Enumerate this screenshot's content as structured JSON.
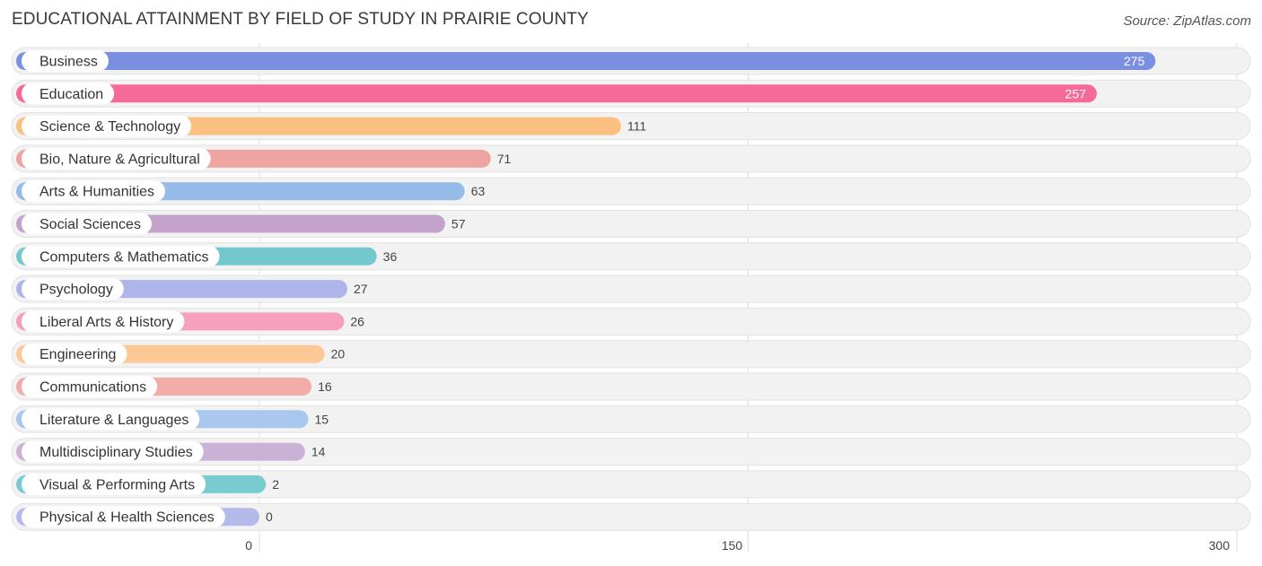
{
  "header": {
    "title": "EDUCATIONAL ATTAINMENT BY FIELD OF STUDY IN PRAIRIE COUNTY",
    "source": "Source: ZipAtlas.com"
  },
  "chart_data": {
    "type": "bar",
    "orientation": "horizontal",
    "title": "EDUCATIONAL ATTAINMENT BY FIELD OF STUDY IN PRAIRIE COUNTY",
    "xlabel": "",
    "ylabel": "",
    "xlim": [
      0,
      300
    ],
    "ticks": [
      0,
      150,
      300
    ],
    "grid": true,
    "categories": [
      "Business",
      "Education",
      "Science & Technology",
      "Bio, Nature & Agricultural",
      "Arts & Humanities",
      "Social Sciences",
      "Computers & Mathematics",
      "Psychology",
      "Liberal Arts & History",
      "Engineering",
      "Communications",
      "Literature & Languages",
      "Multidisciplinary Studies",
      "Visual & Performing Arts",
      "Physical & Health Sciences"
    ],
    "values": [
      275,
      257,
      111,
      71,
      63,
      57,
      36,
      27,
      26,
      20,
      16,
      15,
      14,
      2,
      0
    ],
    "colors": [
      "#7b8fe0",
      "#f56a99",
      "#fbbf7f",
      "#eea4a0",
      "#95bbe8",
      "#c3a3cc",
      "#72c8cd",
      "#adb5ea",
      "#f5a0bd",
      "#fcc996",
      "#f2ada8",
      "#a9c6ec",
      "#cbb1d5",
      "#78cbd0",
      "#b4bbea"
    ]
  }
}
